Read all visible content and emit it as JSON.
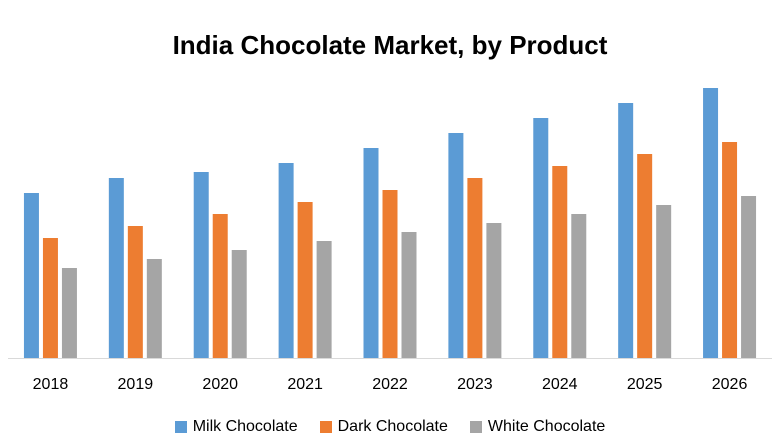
{
  "chart_data": {
    "type": "bar",
    "title": "India Chocolate Market, by Product",
    "xlabel": "",
    "ylabel": "",
    "categories": [
      "2018",
      "2019",
      "2020",
      "2021",
      "2022",
      "2023",
      "2024",
      "2025",
      "2026"
    ],
    "series": [
      {
        "name": "Milk Chocolate",
        "color": "#5b9bd5",
        "values": [
          55,
          60,
          62,
          65,
          70,
          75,
          80,
          85,
          90
        ]
      },
      {
        "name": "Dark Chocolate",
        "color": "#ed7d31",
        "values": [
          40,
          44,
          48,
          52,
          56,
          60,
          64,
          68,
          72
        ]
      },
      {
        "name": "White Chocolate",
        "color": "#a5a5a5",
        "values": [
          30,
          33,
          36,
          39,
          42,
          45,
          48,
          51,
          54
        ]
      }
    ],
    "ylim": [
      0,
      100
    ],
    "grid": false,
    "legend_position": "bottom"
  }
}
